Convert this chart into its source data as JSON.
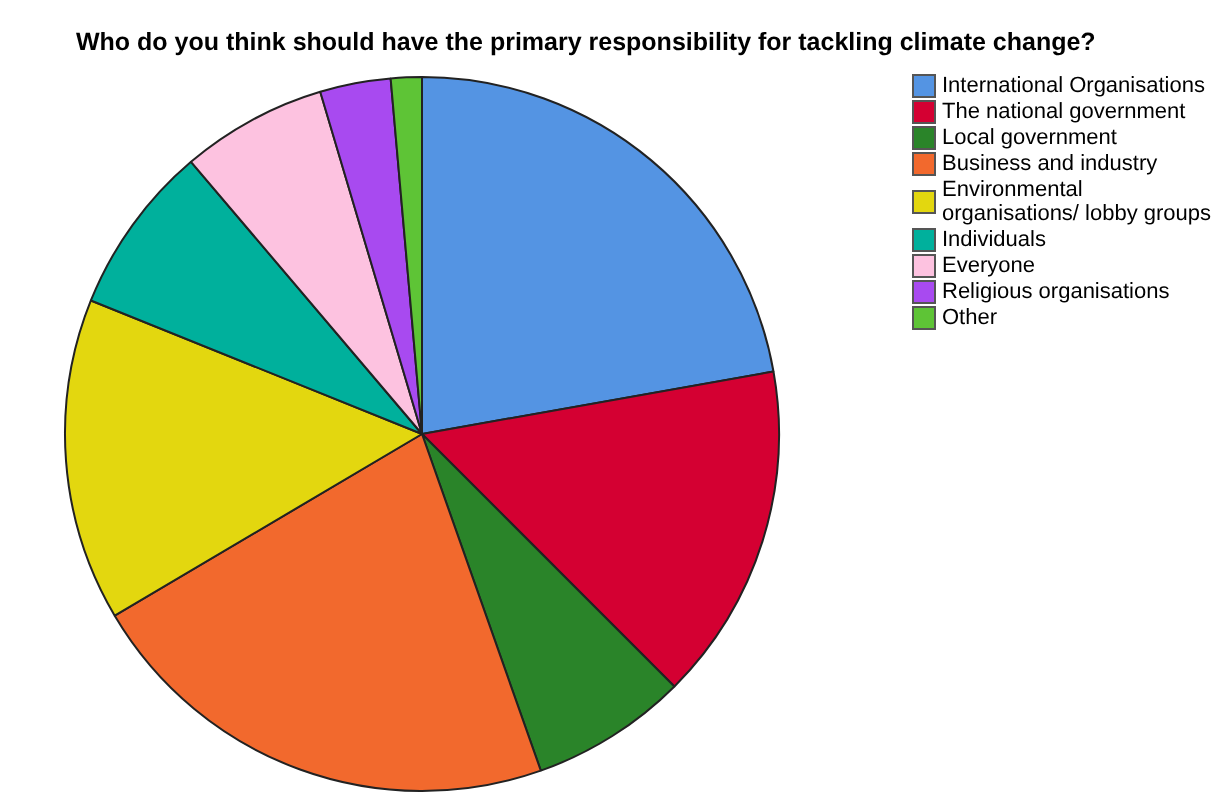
{
  "chart_data": {
    "type": "pie",
    "title": "Who do you think should have the primary responsibility for tackling climate change?",
    "categories": [
      "International Organisations",
      "The national government",
      "Local government",
      "Business and industry",
      "Environmental organisations/ lobby groups",
      "Individuals",
      "Everyone",
      "Religious organisations",
      "Other"
    ],
    "values": [
      22.2,
      15.3,
      7.1,
      21.9,
      14.6,
      7.7,
      6.6,
      3.2,
      1.4
    ],
    "colors": [
      "#5494e3",
      "#d40032",
      "#2a8429",
      "#f2692d",
      "#e3d70f",
      "#00b09c",
      "#fdc2e0",
      "#a84af0",
      "#5ec436"
    ],
    "legend": "top right"
  }
}
